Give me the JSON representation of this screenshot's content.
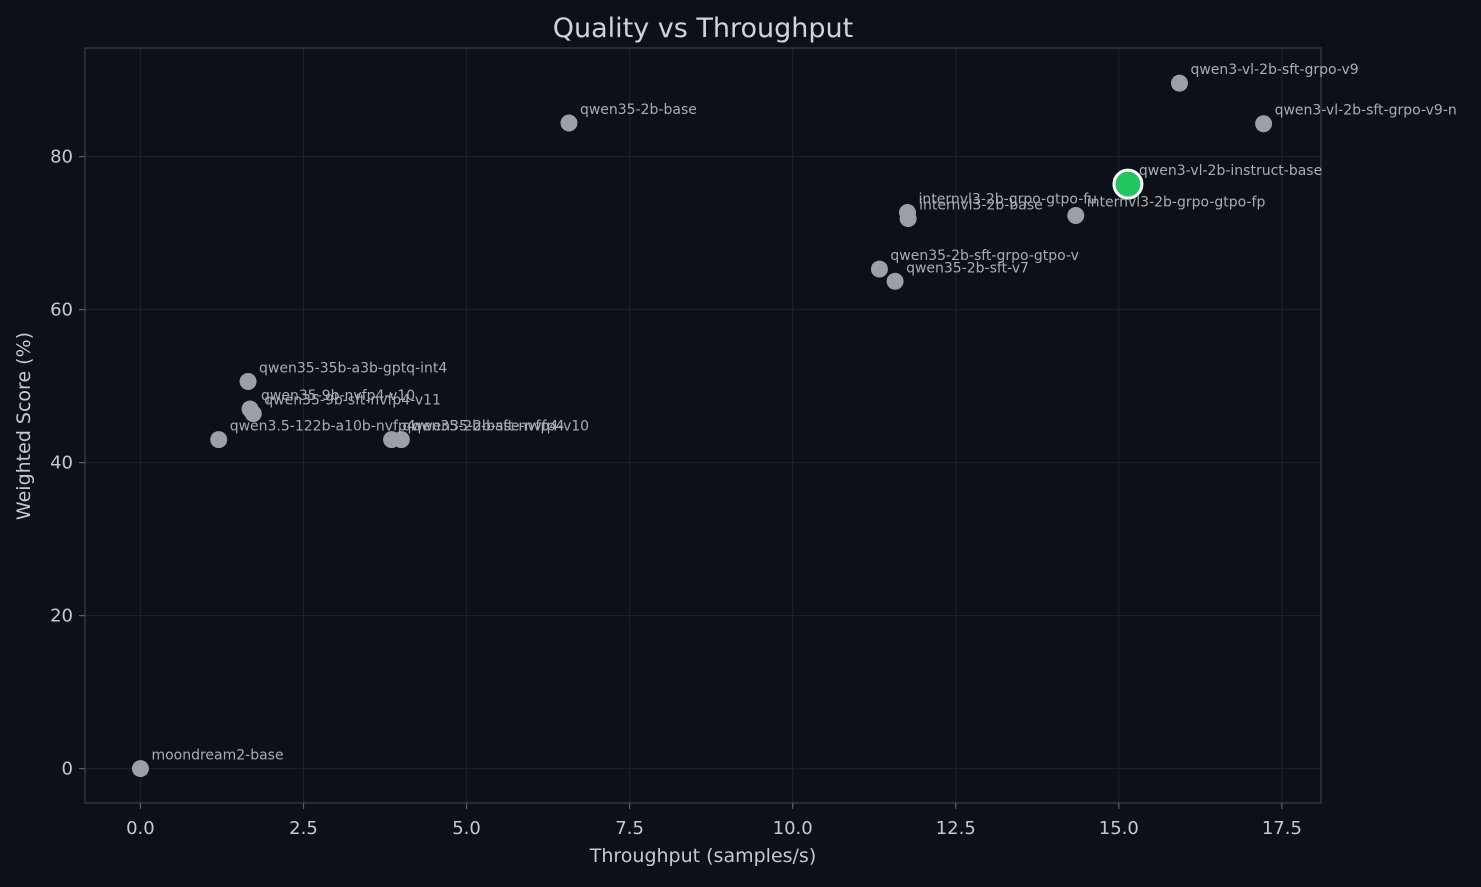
{
  "chart_data": {
    "type": "scatter",
    "title": "Quality vs Throughput",
    "xlabel": "Throughput (samples/s)",
    "ylabel": "Weighted Score (%)",
    "xlim": [
      -0.85,
      18.1
    ],
    "ylim": [
      -4.5,
      94.2
    ],
    "xticks": [
      0.0,
      2.5,
      5.0,
      7.5,
      10.0,
      12.5,
      15.0,
      17.5
    ],
    "xtick_labels": [
      "0.0",
      "2.5",
      "5.0",
      "7.5",
      "10.0",
      "12.5",
      "15.0",
      "17.5"
    ],
    "yticks": [
      0,
      20,
      40,
      60,
      80
    ],
    "ytick_labels": [
      "0",
      "20",
      "40",
      "60",
      "80"
    ],
    "grid": true,
    "colors": {
      "background": "#0d1017",
      "point": "#9ba0a8",
      "highlight": "#22c55e",
      "highlight_stroke": "#ffffff"
    },
    "points": [
      {
        "label": "moondream2-base",
        "x": 0.0,
        "y": 0.0
      },
      {
        "label": "qwen3.5-122b-a10b-nvfp4",
        "x": 1.2,
        "y": 43.0
      },
      {
        "label": "qwen35-35b-a3b-gptq-int4",
        "x": 1.65,
        "y": 50.6
      },
      {
        "label": "qwen35-9b-nvfp4-v10",
        "x": 1.68,
        "y": 47.0
      },
      {
        "label": "qwen35-9b-sft-nvfp4-v11",
        "x": 1.73,
        "y": 46.4
      },
      {
        "label": "qwen35-2b-base-nvfp4",
        "x": 3.85,
        "y": 43.0
      },
      {
        "label": "qwen35-2b-sft-nvfp4-v10",
        "x": 4.0,
        "y": 43.0
      },
      {
        "label": "qwen35-2b-base",
        "x": 6.57,
        "y": 84.4
      },
      {
        "label": "qwen35-2b-sft-grpo-gtpo-v",
        "x": 11.33,
        "y": 65.3
      },
      {
        "label": "qwen35-2b-sft-v7",
        "x": 11.57,
        "y": 63.7
      },
      {
        "label": "internvl3-2b-grpo-gtpo-fu",
        "x": 11.76,
        "y": 72.7
      },
      {
        "label": "internvl3-2b-base",
        "x": 11.77,
        "y": 71.9
      },
      {
        "label": "internvl3-2b-grpo-gtpo-fp",
        "x": 14.34,
        "y": 72.3
      },
      {
        "label": "qwen3-vl-2b-instruct-base",
        "x": 15.14,
        "y": 76.4,
        "highlight": true
      },
      {
        "label": "qwen3-vl-2b-sft-grpo-v9",
        "x": 15.93,
        "y": 89.6
      },
      {
        "label": "qwen3-vl-2b-sft-grpo-v9-n",
        "x": 17.22,
        "y": 84.3
      }
    ]
  }
}
